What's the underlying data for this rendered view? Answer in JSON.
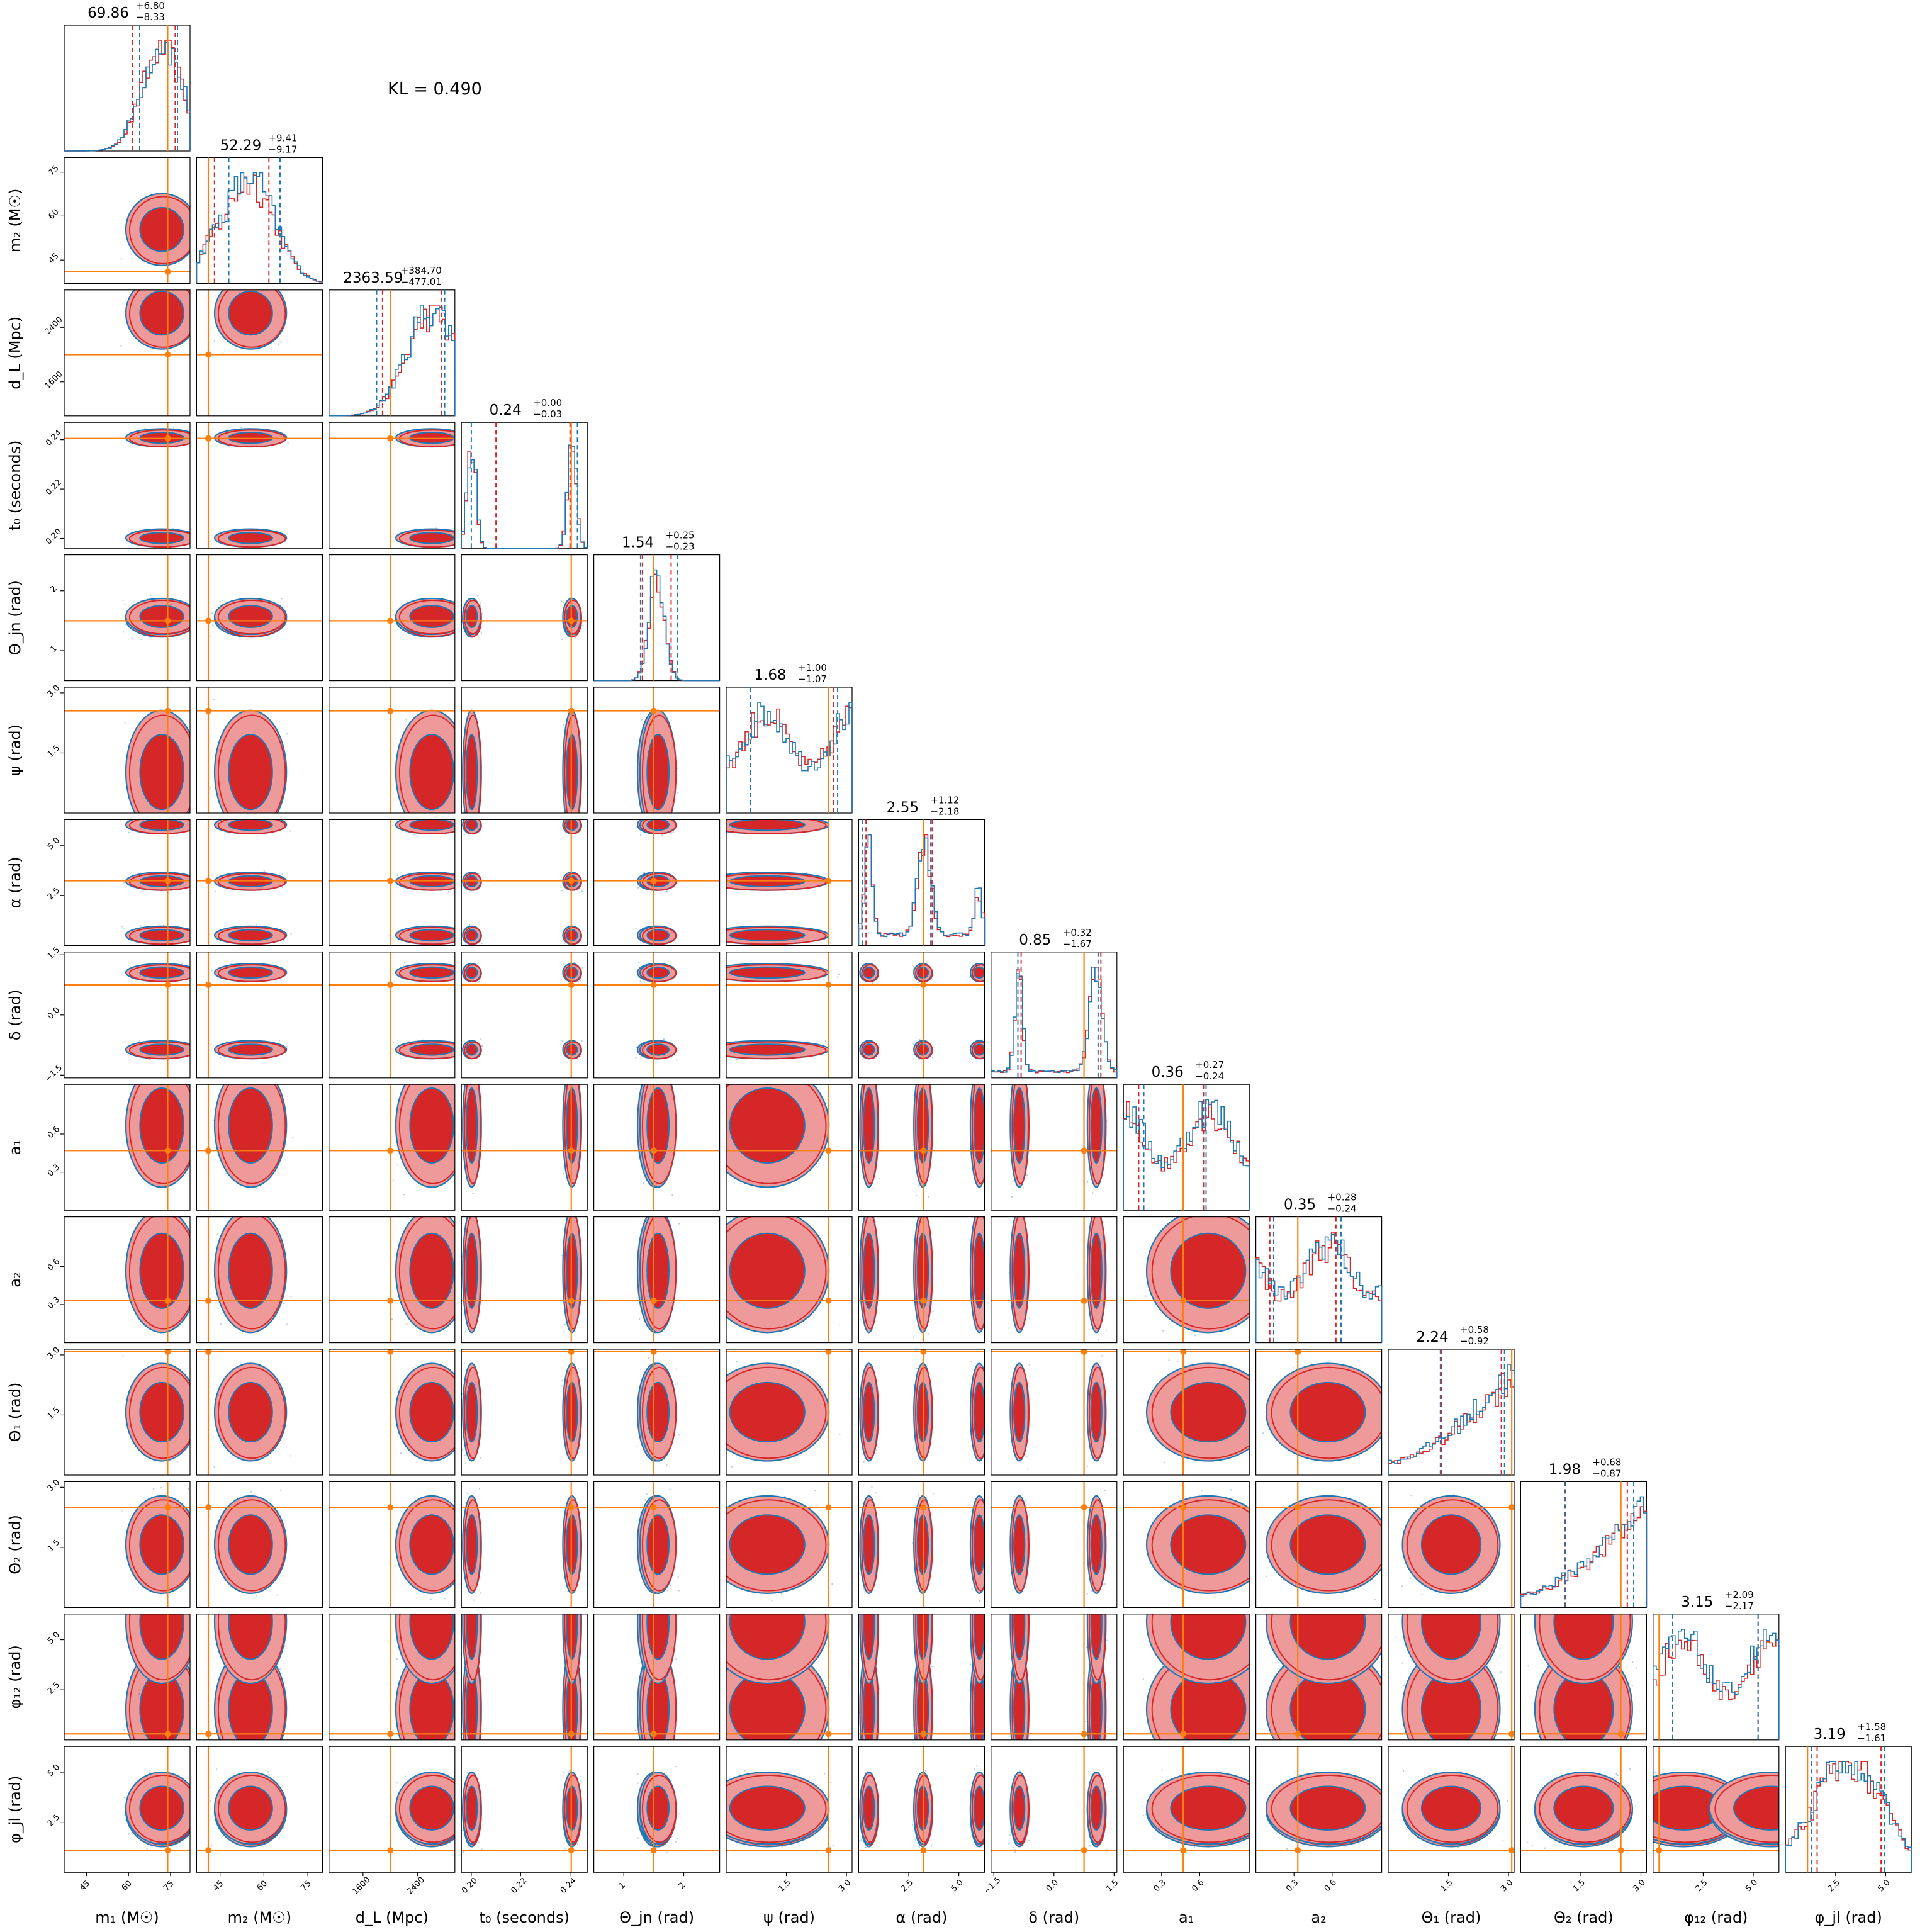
{
  "annotation": "KL = 0.490",
  "colors": {
    "red": "#d62728",
    "red_light": "#ef9a9a",
    "blue": "#1f77b4",
    "truth": "#ff7f0e",
    "axis": "#000000"
  },
  "chart_data": {
    "type": "corner",
    "series": [
      "red",
      "blue"
    ],
    "grid": false,
    "parameters": [
      {
        "label": "m₁ (M☉)",
        "median": "69.86",
        "plus": "+6.80",
        "minus": "−8.33",
        "ticks": [
          "45",
          "60",
          "75"
        ],
        "range": [
          37,
          82
        ],
        "truth": 74.0,
        "ci_red": [
          61.5,
          76.7
        ],
        "ci_blue": [
          64.0,
          77.5
        ]
      },
      {
        "label": "m₂ (M☉)",
        "median": "52.29",
        "plus": "+9.41",
        "minus": "−9.17",
        "ticks": [
          "45",
          "60",
          "75"
        ],
        "range": [
          37,
          80
        ],
        "truth": 41.0,
        "ci_red": [
          43.1,
          61.7
        ],
        "ci_blue": [
          48.0,
          65.5
        ]
      },
      {
        "label": "d_L (Mpc)",
        "median": "2363.59",
        "plus": "+384.70",
        "minus": "−477.01",
        "ticks": [
          "1600",
          "2400"
        ],
        "range": [
          1100,
          2950
        ],
        "truth": 2000.0,
        "ci_red": [
          1886.6,
          2748.3
        ],
        "ci_blue": [
          1800.0,
          2800.0
        ]
      },
      {
        "label": "t₀ (seconds)",
        "median": "0.24",
        "plus": "+0.00",
        "minus": "−0.03",
        "ticks": [
          "0.20",
          "0.22",
          "0.24"
        ],
        "range": [
          0.196,
          0.247
        ],
        "truth": 0.2405,
        "ci_red": [
          0.21,
          0.24
        ],
        "ci_blue": [
          0.2,
          0.243
        ]
      },
      {
        "label": "Θ_jn (rad)",
        "median": "1.54",
        "plus": "+0.25",
        "minus": "−0.23",
        "ticks": [
          "1",
          "2"
        ],
        "range": [
          0.5,
          2.6
        ],
        "truth": 1.5,
        "ci_red": [
          1.31,
          1.79
        ],
        "ci_blue": [
          1.28,
          1.9
        ]
      },
      {
        "label": "ψ (rad)",
        "median": "1.68",
        "plus": "+1.00",
        "minus": "−1.07",
        "ticks": [
          "1.5",
          "3.0"
        ],
        "range": [
          0,
          3.14
        ],
        "truth": 2.55,
        "ci_red": [
          0.61,
          2.68
        ],
        "ci_blue": [
          0.6,
          2.78
        ]
      },
      {
        "label": "α (rad)",
        "median": "2.55",
        "plus": "+1.12",
        "minus": "−2.18",
        "ticks": [
          "2.5",
          "5.0"
        ],
        "range": [
          0,
          6.28
        ],
        "truth": 3.23,
        "ci_red": [
          0.37,
          3.67
        ],
        "ci_blue": [
          0.2,
          3.6
        ]
      },
      {
        "label": "δ (rad)",
        "median": "0.85",
        "plus": "+0.32",
        "minus": "−1.67",
        "ticks": [
          "−1.5",
          "0.0",
          "1.5"
        ],
        "range": [
          -1.57,
          1.57
        ],
        "truth": 0.75,
        "ci_red": [
          -0.82,
          1.17
        ],
        "ci_blue": [
          -0.9,
          1.1
        ]
      },
      {
        "label": "a₁",
        "median": "0.36",
        "plus": "+0.27",
        "minus": "−0.24",
        "ticks": [
          "0.3",
          "0.6"
        ],
        "range": [
          0,
          0.99
        ],
        "truth": 0.47,
        "ci_red": [
          0.12,
          0.63
        ],
        "ci_blue": [
          0.16,
          0.65
        ]
      },
      {
        "label": "a₂",
        "median": "0.35",
        "plus": "+0.28",
        "minus": "−0.24",
        "ticks": [
          "0.3",
          "0.6"
        ],
        "range": [
          0,
          0.99
        ],
        "truth": 0.33,
        "ci_red": [
          0.11,
          0.63
        ],
        "ci_blue": [
          0.14,
          0.67
        ]
      },
      {
        "label": "Θ₁ (rad)",
        "median": "2.24",
        "plus": "+0.58",
        "minus": "−0.92",
        "ticks": [
          "1.5",
          "3.0"
        ],
        "range": [
          0,
          3.14
        ],
        "truth": 3.08,
        "ci_red": [
          1.32,
          2.82
        ],
        "ci_blue": [
          1.3,
          2.9
        ]
      },
      {
        "label": "Θ₂ (rad)",
        "median": "1.98",
        "plus": "+0.68",
        "minus": "−0.87",
        "ticks": [
          "1.5",
          "3.0"
        ],
        "range": [
          0,
          3.14
        ],
        "truth": 2.5,
        "ci_red": [
          1.11,
          2.66
        ],
        "ci_blue": [
          1.1,
          2.82
        ]
      },
      {
        "label": "φ₁₂ (rad)",
        "median": "3.15",
        "plus": "+2.09",
        "minus": "−2.17",
        "ticks": [
          "2.5",
          "5.0"
        ],
        "range": [
          0,
          6.28
        ],
        "truth": 0.3,
        "ci_red": [
          0.98,
          5.24
        ],
        "ci_blue": [
          0.98,
          5.24
        ]
      },
      {
        "label": "φ_jl (rad)",
        "median": "3.19",
        "plus": "+1.58",
        "minus": "−1.61",
        "ticks": [
          "2.5",
          "5.0"
        ],
        "range": [
          0,
          6.28
        ],
        "truth": 1.1,
        "ci_red": [
          1.58,
          4.77
        ],
        "ci_blue": [
          1.3,
          4.95
        ]
      }
    ]
  }
}
